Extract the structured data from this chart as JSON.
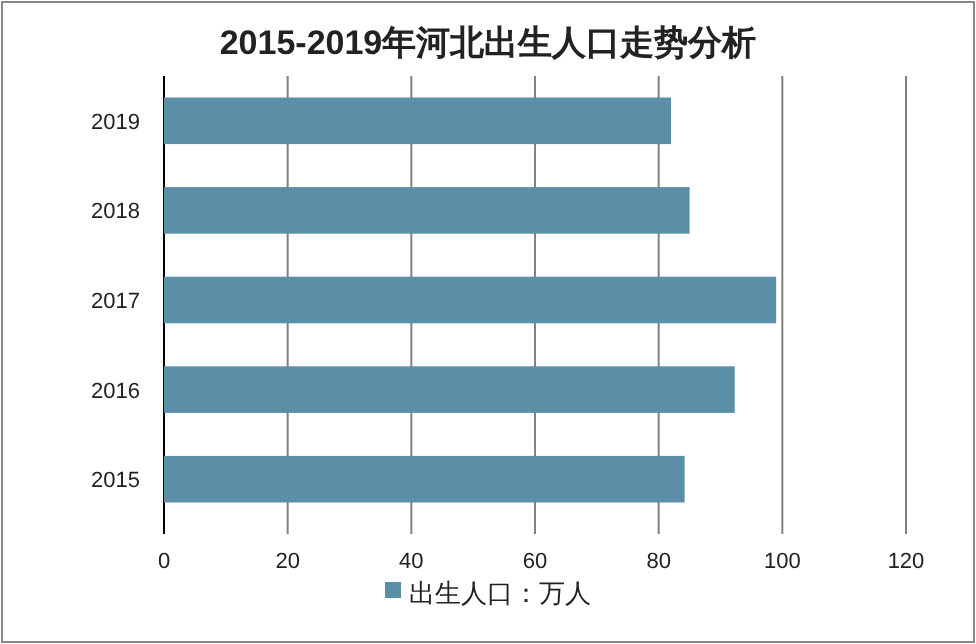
{
  "chart_data": {
    "type": "bar",
    "orientation": "horizontal",
    "title": "2015-2019年河北出生人口走势分析",
    "categories": [
      "2019",
      "2018",
      "2017",
      "2016",
      "2015"
    ],
    "series": [
      {
        "name": "出生人口：万人",
        "color": "#5b8fa8",
        "values": [
          82,
          85,
          99,
          92.3,
          84.2
        ]
      }
    ],
    "xlim": [
      0,
      120
    ],
    "xticks": [
      0,
      20,
      40,
      60,
      80,
      100,
      120
    ],
    "grid": "x",
    "legend": "bottom"
  }
}
